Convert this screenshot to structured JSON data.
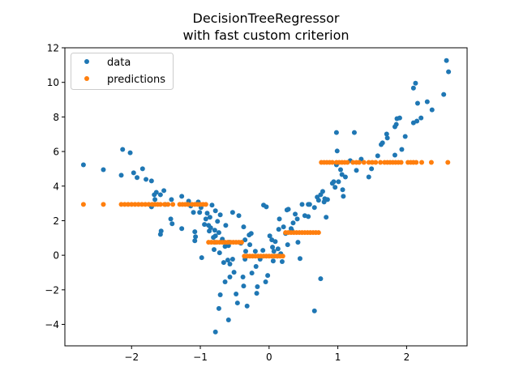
{
  "chart_data": {
    "type": "scatter",
    "title": [
      "DecisionTreeRegressor",
      "with fast custom criterion"
    ],
    "xlabel": "",
    "ylabel": "",
    "xlim": [
      -2.97,
      2.88
    ],
    "ylim": [
      -5.24,
      12
    ],
    "xticks": [
      -2,
      -1,
      0,
      1,
      2
    ],
    "xtick_labels": [
      "−2",
      "−1",
      "0",
      "1",
      "2"
    ],
    "yticks": [
      -4,
      -2,
      0,
      2,
      4,
      6,
      8,
      10,
      12
    ],
    "ytick_labels": [
      "−4",
      "−2",
      "0",
      "2",
      "4",
      "6",
      "8",
      "10",
      "12"
    ],
    "grid": false,
    "legend_position": "upper-left",
    "series": [
      {
        "name": "data",
        "color": "#1f77b4",
        "points": [
          [
            -2.7,
            5.23
          ],
          [
            -2.41,
            4.95
          ],
          [
            -2.15,
            4.63
          ],
          [
            -2.13,
            6.12
          ],
          [
            -2.02,
            5.93
          ],
          [
            -1.97,
            4.77
          ],
          [
            -1.92,
            4.49
          ],
          [
            -1.84,
            5.0
          ],
          [
            -1.79,
            4.39
          ],
          [
            -1.71,
            4.3
          ],
          [
            -1.67,
            3.5
          ],
          [
            -1.66,
            3.22
          ],
          [
            -1.71,
            2.8
          ],
          [
            -1.64,
            3.64
          ],
          [
            -1.58,
            3.5
          ],
          [
            -1.58,
            1.21
          ],
          [
            -1.57,
            1.4
          ],
          [
            -1.53,
            3.74
          ],
          [
            -1.51,
            2.94
          ],
          [
            -1.43,
            2.1
          ],
          [
            -1.41,
            1.82
          ],
          [
            -1.42,
            3.22
          ],
          [
            -1.27,
            1.54
          ],
          [
            -1.27,
            3.41
          ],
          [
            -1.17,
            3.13
          ],
          [
            -1.14,
            2.85
          ],
          [
            -1.1,
            2.48
          ],
          [
            -1.08,
            1.36
          ],
          [
            -1.07,
            1.07
          ],
          [
            -1.08,
            0.84
          ],
          [
            -1.03,
            3.08
          ],
          [
            -0.99,
            2.76
          ],
          [
            -1.01,
            2.48
          ],
          [
            -0.98,
            -0.14
          ],
          [
            -0.94,
            1.78
          ],
          [
            -0.92,
            2.1
          ],
          [
            -0.9,
            2.43
          ],
          [
            -0.88,
            1.73
          ],
          [
            -0.87,
            1.4
          ],
          [
            -0.86,
            2.2
          ],
          [
            -0.85,
            1.59
          ],
          [
            -0.83,
            2.9
          ],
          [
            -0.81,
            1.03
          ],
          [
            -0.79,
            0.75
          ],
          [
            -0.78,
            1.12
          ],
          [
            -0.79,
            1.45
          ],
          [
            -0.78,
            2.57
          ],
          [
            -0.8,
            0.33
          ],
          [
            -0.75,
            1.96
          ],
          [
            -0.73,
            1.31
          ],
          [
            -0.72,
            0.14
          ],
          [
            -0.71,
            2.34
          ],
          [
            -0.68,
            0.93
          ],
          [
            -0.66,
            -0.42
          ],
          [
            -0.64,
            0.51
          ],
          [
            -0.63,
            1.73
          ],
          [
            -0.6,
            -0.28
          ],
          [
            -0.59,
            0.56
          ],
          [
            -0.58,
            0.75
          ],
          [
            -0.57,
            -0.51
          ],
          [
            -0.53,
            2.48
          ],
          [
            -0.53,
            -0.23
          ],
          [
            -0.51,
            -0.98
          ],
          [
            -0.48,
            -2.24
          ],
          [
            -0.46,
            -2.76
          ],
          [
            -0.44,
            2.29
          ],
          [
            -0.41,
            0.7
          ],
          [
            -0.37,
            1.64
          ],
          [
            -0.37,
            -1.78
          ],
          [
            -0.35,
            -0.23
          ],
          [
            -0.34,
            0.23
          ],
          [
            -0.32,
            -2.94
          ],
          [
            -0.29,
            1.17
          ],
          [
            -0.35,
            0.89
          ],
          [
            -0.28,
            0.61
          ],
          [
            -0.26,
            1.26
          ],
          [
            -0.2,
            0.23
          ],
          [
            -0.19,
            -0.65
          ],
          [
            -0.17,
            -1.82
          ],
          [
            -0.13,
            -0.23
          ],
          [
            -0.09,
            0.28
          ],
          [
            -0.08,
            2.9
          ],
          [
            -0.04,
            2.8
          ],
          [
            -0.02,
            -1.17
          ],
          [
            0.01,
            1.12
          ],
          [
            0.04,
            0.89
          ],
          [
            0.05,
            0.47
          ],
          [
            0.07,
            0.23
          ],
          [
            0.06,
            -0.33
          ],
          [
            0.09,
            0.79
          ],
          [
            0.12,
            -0.05
          ],
          [
            0.14,
            1.5
          ],
          [
            0.17,
            0.09
          ],
          [
            0.19,
            -0.37
          ],
          [
            0.15,
            2.1
          ],
          [
            0.21,
            1.64
          ],
          [
            0.24,
            1.26
          ],
          [
            0.26,
            2.62
          ],
          [
            0.28,
            2.66
          ],
          [
            0.27,
            0.61
          ],
          [
            0.32,
            1.54
          ],
          [
            0.33,
            1.45
          ],
          [
            0.35,
            1.87
          ],
          [
            0.38,
            2.38
          ],
          [
            0.41,
            2.1
          ],
          [
            0.42,
            0.75
          ],
          [
            0.45,
            -0.19
          ],
          [
            0.48,
            2.94
          ],
          [
            0.52,
            2.29
          ],
          [
            0.57,
            2.94
          ],
          [
            0.57,
            2.24
          ],
          [
            0.59,
            2.94
          ],
          [
            0.66,
            2.76
          ],
          [
            0.7,
            3.36
          ],
          [
            0.72,
            3.18
          ],
          [
            0.75,
            3.5
          ],
          [
            0.78,
            3.69
          ],
          [
            0.81,
            3.27
          ],
          [
            0.8,
            3.08
          ],
          [
            0.83,
            2.2
          ],
          [
            0.85,
            3.22
          ],
          [
            0.92,
            4.16
          ],
          [
            0.94,
            4.25
          ],
          [
            0.96,
            3.93
          ],
          [
            0.98,
            5.23
          ],
          [
            0.99,
            6.03
          ],
          [
            1.01,
            4.25
          ],
          [
            1.04,
            4.95
          ],
          [
            1.06,
            4.67
          ],
          [
            1.07,
            3.79
          ],
          [
            1.08,
            3.41
          ],
          [
            1.11,
            4.53
          ],
          [
            1.18,
            5.47
          ],
          [
            1.24,
            7.1
          ],
          [
            0.98,
            7.1
          ],
          [
            1.27,
            4.91
          ],
          [
            1.34,
            5.56
          ],
          [
            1.45,
            4.53
          ],
          [
            1.49,
            5.0
          ],
          [
            1.58,
            5.75
          ],
          [
            1.63,
            6.4
          ],
          [
            1.65,
            6.5
          ],
          [
            1.71,
            7.01
          ],
          [
            1.72,
            6.78
          ],
          [
            1.86,
            7.9
          ],
          [
            1.83,
            7.43
          ],
          [
            1.85,
            7.57
          ],
          [
            1.9,
            7.94
          ],
          [
            1.93,
            6.12
          ],
          [
            1.98,
            6.87
          ],
          [
            2.1,
            7.66
          ],
          [
            2.15,
            7.76
          ],
          [
            2.16,
            8.79
          ],
          [
            2.21,
            7.94
          ],
          [
            2.3,
            8.88
          ],
          [
            2.37,
            8.41
          ],
          [
            2.54,
            9.3
          ],
          [
            2.58,
            11.26
          ],
          [
            2.61,
            10.61
          ],
          [
            2.13,
            9.95
          ],
          [
            2.1,
            9.67
          ],
          [
            1.83,
            5.79
          ],
          [
            -0.25,
            -1.03
          ],
          [
            -0.05,
            -1.54
          ],
          [
            0.13,
            0.37
          ],
          [
            -0.38,
            -1.26
          ],
          [
            -0.57,
            -1.26
          ],
          [
            -0.71,
            -2.29
          ],
          [
            -0.73,
            -3.08
          ],
          [
            -0.78,
            -4.44
          ],
          [
            -0.59,
            -3.74
          ],
          [
            -0.18,
            -2.2
          ],
          [
            0.66,
            -3.22
          ],
          [
            0.75,
            -1.36
          ],
          [
            -0.64,
            -1.54
          ]
        ]
      },
      {
        "name": "predictions",
        "color": "#ff7f0e",
        "points": [
          [
            -2.7,
            2.94
          ],
          [
            -2.41,
            2.94
          ],
          [
            -2.15,
            2.94
          ],
          [
            -2.1,
            2.94
          ],
          [
            -2.05,
            2.94
          ],
          [
            -2.0,
            2.94
          ],
          [
            -1.95,
            2.94
          ],
          [
            -1.9,
            2.94
          ],
          [
            -1.85,
            2.94
          ],
          [
            -1.8,
            2.94
          ],
          [
            -1.75,
            2.94
          ],
          [
            -1.7,
            2.94
          ],
          [
            -1.66,
            2.94
          ],
          [
            -1.62,
            2.94
          ],
          [
            -1.58,
            2.94
          ],
          [
            -1.52,
            2.94
          ],
          [
            -1.47,
            2.94
          ],
          [
            -1.4,
            2.94
          ],
          [
            -1.3,
            2.94
          ],
          [
            -1.26,
            2.94
          ],
          [
            -1.22,
            2.94
          ],
          [
            -1.18,
            2.94
          ],
          [
            -1.12,
            2.94
          ],
          [
            -1.08,
            2.94
          ],
          [
            -1.04,
            2.94
          ],
          [
            -1.0,
            2.94
          ],
          [
            -0.96,
            2.94
          ],
          [
            -0.92,
            2.94
          ],
          [
            -0.88,
            0.75
          ],
          [
            -0.84,
            0.75
          ],
          [
            -0.8,
            0.75
          ],
          [
            -0.76,
            0.75
          ],
          [
            -0.72,
            0.75
          ],
          [
            -0.68,
            0.75
          ],
          [
            -0.64,
            0.75
          ],
          [
            -0.6,
            0.75
          ],
          [
            -0.56,
            0.75
          ],
          [
            -0.52,
            0.75
          ],
          [
            -0.48,
            0.75
          ],
          [
            -0.44,
            0.75
          ],
          [
            -0.4,
            0.75
          ],
          [
            -0.36,
            -0.05
          ],
          [
            -0.32,
            -0.05
          ],
          [
            -0.28,
            -0.05
          ],
          [
            -0.24,
            -0.05
          ],
          [
            -0.2,
            -0.05
          ],
          [
            -0.16,
            -0.05
          ],
          [
            -0.12,
            -0.05
          ],
          [
            -0.08,
            -0.05
          ],
          [
            -0.04,
            -0.05
          ],
          [
            0.0,
            -0.05
          ],
          [
            0.04,
            -0.05
          ],
          [
            0.08,
            -0.05
          ],
          [
            0.12,
            -0.05
          ],
          [
            0.16,
            -0.05
          ],
          [
            0.2,
            -0.05
          ],
          [
            0.24,
            1.31
          ],
          [
            0.28,
            1.31
          ],
          [
            0.32,
            1.31
          ],
          [
            0.36,
            1.31
          ],
          [
            0.4,
            1.31
          ],
          [
            0.44,
            1.31
          ],
          [
            0.48,
            1.31
          ],
          [
            0.52,
            1.31
          ],
          [
            0.56,
            1.31
          ],
          [
            0.6,
            1.31
          ],
          [
            0.64,
            1.31
          ],
          [
            0.68,
            1.31
          ],
          [
            0.72,
            1.31
          ],
          [
            0.76,
            5.37
          ],
          [
            0.8,
            5.37
          ],
          [
            0.84,
            5.37
          ],
          [
            0.88,
            5.37
          ],
          [
            0.92,
            5.37
          ],
          [
            0.98,
            5.37
          ],
          [
            1.02,
            5.37
          ],
          [
            1.06,
            5.37
          ],
          [
            1.1,
            5.37
          ],
          [
            1.14,
            5.37
          ],
          [
            1.22,
            5.37
          ],
          [
            1.27,
            5.37
          ],
          [
            1.31,
            5.37
          ],
          [
            1.38,
            5.37
          ],
          [
            1.45,
            5.37
          ],
          [
            1.5,
            5.37
          ],
          [
            1.55,
            5.37
          ],
          [
            1.62,
            5.37
          ],
          [
            1.68,
            5.37
          ],
          [
            1.72,
            5.37
          ],
          [
            1.76,
            5.37
          ],
          [
            1.8,
            5.37
          ],
          [
            1.84,
            5.37
          ],
          [
            1.88,
            5.37
          ],
          [
            1.92,
            5.37
          ],
          [
            2.02,
            5.37
          ],
          [
            2.06,
            5.37
          ],
          [
            2.1,
            5.37
          ],
          [
            2.14,
            5.37
          ],
          [
            2.22,
            5.37
          ],
          [
            2.36,
            5.37
          ],
          [
            2.6,
            5.37
          ]
        ]
      }
    ]
  }
}
